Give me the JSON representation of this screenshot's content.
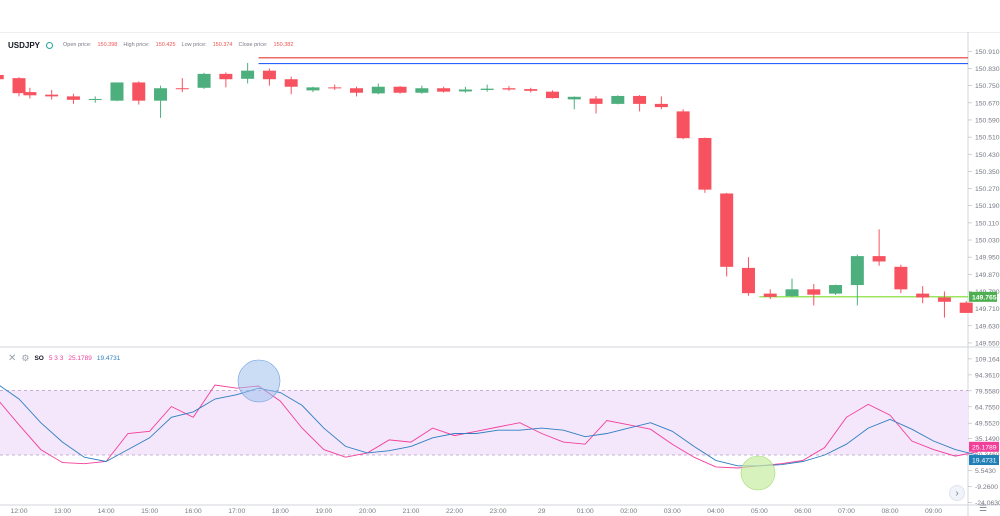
{
  "legend": {
    "symbol": "USDJPY",
    "open_label": "Open price:",
    "open_value": "150.398",
    "high_label": "High price:",
    "high_value": "150.425",
    "low_label": "Low price:",
    "low_value": "150.374",
    "close_label": "Close price:",
    "close_value": "150.382"
  },
  "indicator": {
    "name": "SO",
    "params": "5 3 3",
    "k_value": "25.1789",
    "d_value": "19.4731"
  },
  "colors": {
    "up": "#4caf7d",
    "down": "#f7525f",
    "red_line": "#e53935",
    "blue_line": "#2962ff",
    "green_line": "#7ddc2c",
    "k_line": "#f23f9a",
    "d_line": "#2f7fc1",
    "band_fill": "#f4e6fb",
    "grid": "#f0f3fa",
    "blue_circle": "#9fc1ec",
    "green_circle": "#c6eda1"
  },
  "icons": {
    "close": "close-icon",
    "settings": "gear-icon",
    "scroll": "chevron-right-icon",
    "chart_settings": "sliders-icon"
  },
  "chart_data": [
    {
      "type": "candlestick",
      "title": "USDJPY",
      "x_ticks": [
        "12:00",
        "13:00",
        "14:00",
        "15:00",
        "16:00",
        "17:00",
        "18:00",
        "19:00",
        "20:00",
        "21:00",
        "22:00",
        "23:00",
        "29",
        "01:00",
        "02:00",
        "03:00",
        "04:00",
        "05:00",
        "06:00",
        "07:00",
        "08:00",
        "09:00"
      ],
      "y_ticks": [
        150.91,
        150.83,
        150.75,
        150.67,
        150.59,
        150.51,
        150.43,
        150.35,
        150.27,
        150.19,
        150.11,
        150.03,
        149.95,
        149.87,
        149.79,
        149.71,
        149.63,
        149.55
      ],
      "ylim": [
        149.545,
        150.935
      ],
      "price_label": "149.765",
      "horizontal_lines": [
        {
          "name": "red",
          "value": 150.88,
          "from": "17:30"
        },
        {
          "name": "blue",
          "value": 150.853,
          "from": "17:30"
        },
        {
          "name": "green",
          "value": 149.765,
          "from": "05:00"
        }
      ],
      "candles": [
        {
          "t": "11:30",
          "o": 150.8,
          "h": 150.805,
          "l": 150.77,
          "c": 150.78
        },
        {
          "t": "12:00",
          "o": 150.785,
          "h": 150.79,
          "l": 150.7,
          "c": 150.715
        },
        {
          "t": "12:15",
          "o": 150.72,
          "h": 150.74,
          "l": 150.69,
          "c": 150.705
        },
        {
          "t": "12:45",
          "o": 150.708,
          "h": 150.73,
          "l": 150.685,
          "c": 150.7
        },
        {
          "t": "13:15",
          "o": 150.7,
          "h": 150.712,
          "l": 150.665,
          "c": 150.684
        },
        {
          "t": "13:45",
          "o": 150.685,
          "h": 150.7,
          "l": 150.67,
          "c": 150.688
        },
        {
          "t": "14:15",
          "o": 150.68,
          "h": 150.765,
          "l": 150.678,
          "c": 150.765
        },
        {
          "t": "14:45",
          "o": 150.765,
          "h": 150.77,
          "l": 150.662,
          "c": 150.68
        },
        {
          "t": "15:15",
          "o": 150.68,
          "h": 150.75,
          "l": 150.6,
          "c": 150.738
        },
        {
          "t": "15:45",
          "o": 150.738,
          "h": 150.785,
          "l": 150.72,
          "c": 150.735
        },
        {
          "t": "16:15",
          "o": 150.74,
          "h": 150.81,
          "l": 150.735,
          "c": 150.805
        },
        {
          "t": "16:45",
          "o": 150.805,
          "h": 150.812,
          "l": 150.742,
          "c": 150.78
        },
        {
          "t": "17:15",
          "o": 150.782,
          "h": 150.856,
          "l": 150.76,
          "c": 150.82
        },
        {
          "t": "17:45",
          "o": 150.82,
          "h": 150.83,
          "l": 150.75,
          "c": 150.78
        },
        {
          "t": "18:15",
          "o": 150.78,
          "h": 150.792,
          "l": 150.71,
          "c": 150.745
        },
        {
          "t": "18:45",
          "o": 150.728,
          "h": 150.745,
          "l": 150.72,
          "c": 150.742
        },
        {
          "t": "19:15",
          "o": 150.742,
          "h": 150.755,
          "l": 150.73,
          "c": 150.738
        },
        {
          "t": "19:45",
          "o": 150.738,
          "h": 150.745,
          "l": 150.7,
          "c": 150.717
        },
        {
          "t": "20:15",
          "o": 150.714,
          "h": 150.76,
          "l": 150.71,
          "c": 150.745
        },
        {
          "t": "20:45",
          "o": 150.745,
          "h": 150.748,
          "l": 150.713,
          "c": 150.717
        },
        {
          "t": "21:15",
          "o": 150.717,
          "h": 150.75,
          "l": 150.712,
          "c": 150.738
        },
        {
          "t": "21:45",
          "o": 150.738,
          "h": 150.745,
          "l": 150.718,
          "c": 150.722
        },
        {
          "t": "22:15",
          "o": 150.723,
          "h": 150.745,
          "l": 150.717,
          "c": 150.732
        },
        {
          "t": "22:45",
          "o": 150.73,
          "h": 150.755,
          "l": 150.722,
          "c": 150.736
        },
        {
          "t": "23:15",
          "o": 150.738,
          "h": 150.748,
          "l": 150.726,
          "c": 150.732
        },
        {
          "t": "23:45",
          "o": 150.734,
          "h": 150.74,
          "l": 150.718,
          "c": 150.726
        },
        {
          "t": "00:15",
          "o": 150.722,
          "h": 150.728,
          "l": 150.69,
          "c": 150.692
        },
        {
          "t": "00:45",
          "o": 150.686,
          "h": 150.7,
          "l": 150.64,
          "c": 150.698
        },
        {
          "t": "01:15",
          "o": 150.69,
          "h": 150.702,
          "l": 150.62,
          "c": 150.665
        },
        {
          "t": "01:45",
          "o": 150.665,
          "h": 150.705,
          "l": 150.663,
          "c": 150.702
        },
        {
          "t": "02:15",
          "o": 150.702,
          "h": 150.706,
          "l": 150.63,
          "c": 150.665
        },
        {
          "t": "02:45",
          "o": 150.665,
          "h": 150.7,
          "l": 150.64,
          "c": 150.65
        },
        {
          "t": "03:15",
          "o": 150.63,
          "h": 150.64,
          "l": 150.5,
          "c": 150.505
        },
        {
          "t": "03:45",
          "o": 150.506,
          "h": 150.508,
          "l": 150.25,
          "c": 150.265
        },
        {
          "t": "04:15",
          "o": 150.247,
          "h": 150.25,
          "l": 149.86,
          "c": 149.905
        },
        {
          "t": "04:45",
          "o": 149.9,
          "h": 149.95,
          "l": 149.77,
          "c": 149.782
        },
        {
          "t": "05:15",
          "o": 149.78,
          "h": 149.8,
          "l": 149.755,
          "c": 149.765
        },
        {
          "t": "05:45",
          "o": 149.768,
          "h": 149.85,
          "l": 149.764,
          "c": 149.8
        },
        {
          "t": "06:15",
          "o": 149.8,
          "h": 149.825,
          "l": 149.725,
          "c": 149.775
        },
        {
          "t": "06:45",
          "o": 149.78,
          "h": 149.822,
          "l": 149.774,
          "c": 149.82
        },
        {
          "t": "07:15",
          "o": 149.82,
          "h": 149.962,
          "l": 149.725,
          "c": 149.955
        },
        {
          "t": "07:45",
          "o": 149.955,
          "h": 150.08,
          "l": 149.91,
          "c": 149.93
        },
        {
          "t": "08:15",
          "o": 149.905,
          "h": 149.915,
          "l": 149.782,
          "c": 149.8
        },
        {
          "t": "08:45",
          "o": 149.78,
          "h": 149.815,
          "l": 149.735,
          "c": 149.762
        },
        {
          "t": "09:15",
          "o": 149.762,
          "h": 149.79,
          "l": 149.668,
          "c": 149.742
        },
        {
          "t": "09:45",
          "o": 149.738,
          "h": 149.745,
          "l": 149.69,
          "c": 149.69
        }
      ]
    },
    {
      "type": "line",
      "title": "SO 5 3 3",
      "y_ticks": [
        109.164,
        94.361,
        79.558,
        64.755,
        49.552,
        35.149,
        20.346,
        5.543,
        -9.26,
        -24.063
      ],
      "ylim": [
        -24.5,
        110
      ],
      "band": [
        80,
        20
      ],
      "series": [
        {
          "name": "25.1789",
          "color": "#f23f9a",
          "t": [
            "11:30",
            "12:00",
            "12:30",
            "13:00",
            "13:30",
            "14:00",
            "14:30",
            "15:00",
            "15:30",
            "16:00",
            "16:30",
            "17:00",
            "17:30",
            "18:00",
            "18:30",
            "19:00",
            "19:30",
            "20:00",
            "20:30",
            "21:00",
            "21:30",
            "22:00",
            "22:30",
            "23:00",
            "23:30",
            "00:00",
            "00:30",
            "01:00",
            "01:30",
            "02:00",
            "02:30",
            "03:00",
            "03:30",
            "04:00",
            "04:30",
            "05:00",
            "05:30",
            "06:00",
            "06:30",
            "07:00",
            "07:30",
            "08:00",
            "08:30",
            "09:00",
            "09:30",
            "10:00"
          ],
          "values": [
            72,
            48,
            25,
            13,
            12,
            14,
            40,
            42,
            65,
            55,
            85,
            82,
            84,
            70,
            45,
            25,
            18,
            22,
            34,
            32,
            45,
            38,
            42,
            46,
            50,
            40,
            32,
            30,
            52,
            48,
            44,
            30,
            18,
            9,
            8,
            10,
            12,
            15,
            27,
            55,
            67,
            57,
            33,
            25,
            19,
            23
          ]
        },
        {
          "name": "19.4731",
          "color": "#2f7fc1",
          "t": [
            "11:30",
            "12:00",
            "12:30",
            "13:00",
            "13:30",
            "14:00",
            "14:30",
            "15:00",
            "15:30",
            "16:00",
            "16:30",
            "17:00",
            "17:30",
            "18:00",
            "18:30",
            "19:00",
            "19:30",
            "20:00",
            "20:30",
            "21:00",
            "21:30",
            "22:00",
            "22:30",
            "23:00",
            "23:30",
            "00:00",
            "00:30",
            "01:00",
            "01:30",
            "02:00",
            "02:30",
            "03:00",
            "03:30",
            "04:00",
            "04:30",
            "05:00",
            "05:30",
            "06:00",
            "06:30",
            "07:00",
            "07:30",
            "08:00",
            "08:30",
            "09:00",
            "09:30",
            "10:00"
          ],
          "values": [
            86,
            72,
            50,
            32,
            18,
            14,
            25,
            36,
            55,
            60,
            72,
            76,
            82,
            78,
            66,
            45,
            28,
            22,
            24,
            28,
            36,
            40,
            40,
            43,
            43,
            45,
            43,
            37,
            40,
            45,
            50,
            42,
            28,
            15,
            10,
            10,
            11,
            14,
            20,
            30,
            45,
            53,
            44,
            33,
            25,
            20
          ]
        }
      ]
    }
  ]
}
